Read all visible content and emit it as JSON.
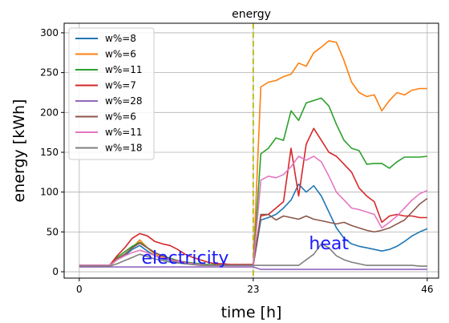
{
  "chart_data": {
    "type": "line",
    "title": "energy",
    "xlabel": "time [h]",
    "ylabel": "energy [kWh]",
    "xlim": [
      -2,
      47.5
    ],
    "ylim": [
      -8,
      312
    ],
    "xticks": [
      0,
      23,
      46
    ],
    "yticks": [
      0,
      50,
      100,
      150,
      200,
      250,
      300
    ],
    "grid": true,
    "legend_position": "upper-left",
    "vline": {
      "x": 23,
      "color": "#bcbd22",
      "style": "dashed"
    },
    "annotations": [
      {
        "text": "electricity",
        "x": 14,
        "y": 10
      },
      {
        "text": "heat",
        "x": 33,
        "y": 28
      }
    ],
    "series": [
      {
        "name": "w%=8",
        "color": "#1f77b4",
        "x": [
          0,
          1,
          2,
          3,
          4,
          5,
          6,
          7,
          8,
          9,
          10,
          11,
          12,
          13,
          14,
          15,
          16,
          17,
          18,
          19,
          20,
          21,
          22,
          23,
          24,
          25,
          26,
          27,
          28,
          29,
          30,
          31,
          32,
          33,
          34,
          35,
          36,
          37,
          38,
          39,
          40,
          41,
          42,
          43,
          44,
          45,
          46
        ],
        "values": [
          8,
          8,
          8,
          8,
          8,
          15,
          20,
          28,
          33,
          26,
          20,
          16,
          14,
          12,
          10,
          10,
          9,
          8,
          8,
          8,
          8,
          8,
          8,
          8,
          65,
          68,
          72,
          80,
          90,
          110,
          100,
          108,
          95,
          75,
          55,
          42,
          35,
          32,
          30,
          28,
          26,
          28,
          32,
          38,
          45,
          50,
          54
        ]
      },
      {
        "name": "w%=6",
        "color": "#ff7f0e",
        "x": [
          0,
          1,
          2,
          3,
          4,
          5,
          6,
          7,
          8,
          9,
          10,
          11,
          12,
          13,
          14,
          15,
          16,
          17,
          18,
          19,
          20,
          21,
          22,
          23,
          24,
          25,
          26,
          27,
          28,
          29,
          30,
          31,
          32,
          33,
          34,
          35,
          36,
          37,
          38,
          39,
          40,
          41,
          42,
          43,
          44,
          45,
          46
        ],
        "values": [
          7,
          7,
          7,
          7,
          7,
          15,
          22,
          30,
          40,
          30,
          22,
          18,
          15,
          13,
          11,
          10,
          9,
          8,
          8,
          8,
          8,
          8,
          8,
          8,
          232,
          238,
          240,
          245,
          248,
          262,
          258,
          275,
          282,
          290,
          288,
          265,
          238,
          225,
          220,
          222,
          202,
          215,
          225,
          222,
          228,
          230,
          230
        ]
      },
      {
        "name": "w%=11",
        "color": "#2ca02c",
        "x": [
          0,
          1,
          2,
          3,
          4,
          5,
          6,
          7,
          8,
          9,
          10,
          11,
          12,
          13,
          14,
          15,
          16,
          17,
          18,
          19,
          20,
          21,
          22,
          23,
          24,
          25,
          26,
          27,
          28,
          29,
          30,
          31,
          32,
          33,
          34,
          35,
          36,
          37,
          38,
          39,
          40,
          41,
          42,
          43,
          44,
          45,
          46
        ],
        "values": [
          8,
          8,
          8,
          8,
          8,
          18,
          25,
          32,
          37,
          30,
          24,
          20,
          17,
          14,
          12,
          11,
          10,
          9,
          9,
          9,
          9,
          9,
          9,
          9,
          148,
          155,
          168,
          165,
          202,
          190,
          212,
          215,
          218,
          208,
          185,
          165,
          155,
          152,
          135,
          136,
          136,
          130,
          138,
          144,
          144,
          144,
          145
        ]
      },
      {
        "name": "w%=7",
        "color": "#d62728",
        "x": [
          0,
          1,
          2,
          3,
          4,
          5,
          6,
          7,
          8,
          9,
          10,
          11,
          12,
          13,
          14,
          15,
          16,
          17,
          18,
          19,
          20,
          21,
          22,
          23,
          24,
          25,
          26,
          27,
          28,
          29,
          30,
          31,
          32,
          33,
          34,
          35,
          36,
          37,
          38,
          39,
          40,
          41,
          42,
          43,
          44,
          45,
          46
        ],
        "values": [
          8,
          8,
          8,
          8,
          8,
          20,
          30,
          42,
          48,
          45,
          38,
          35,
          33,
          28,
          22,
          18,
          15,
          12,
          10,
          10,
          9,
          9,
          9,
          9,
          70,
          72,
          80,
          88,
          155,
          95,
          160,
          180,
          165,
          150,
          145,
          135,
          125,
          105,
          95,
          88,
          62,
          70,
          72,
          70,
          70,
          68,
          68
        ]
      },
      {
        "name": "w%=28",
        "color": "#9467bd",
        "x": [
          0,
          1,
          2,
          3,
          4,
          5,
          6,
          7,
          8,
          9,
          10,
          11,
          12,
          13,
          14,
          15,
          16,
          17,
          18,
          19,
          20,
          21,
          22,
          23,
          24,
          25,
          26,
          27,
          28,
          29,
          30,
          31,
          32,
          33,
          34,
          35,
          36,
          37,
          38,
          39,
          40,
          41,
          42,
          43,
          44,
          45,
          46
        ],
        "values": [
          6,
          6,
          6,
          6,
          6,
          6,
          6,
          6,
          6,
          6,
          6,
          6,
          6,
          6,
          6,
          6,
          6,
          6,
          6,
          6,
          6,
          6,
          6,
          6,
          3,
          3,
          3,
          3,
          3,
          3,
          3,
          3,
          3,
          3,
          3,
          3,
          3,
          3,
          3,
          3,
          3,
          3,
          3,
          3,
          3,
          3,
          3
        ]
      },
      {
        "name": "w%=6",
        "color": "#8c564b",
        "x": [
          0,
          1,
          2,
          3,
          4,
          5,
          6,
          7,
          8,
          9,
          10,
          11,
          12,
          13,
          14,
          15,
          16,
          17,
          18,
          19,
          20,
          21,
          22,
          23,
          24,
          25,
          26,
          27,
          28,
          29,
          30,
          31,
          32,
          33,
          34,
          35,
          36,
          37,
          38,
          39,
          40,
          41,
          42,
          43,
          44,
          45,
          46
        ],
        "values": [
          8,
          8,
          8,
          8,
          8,
          16,
          22,
          30,
          36,
          30,
          24,
          20,
          16,
          14,
          12,
          10,
          9,
          8,
          8,
          8,
          8,
          8,
          8,
          8,
          72,
          72,
          65,
          70,
          68,
          66,
          70,
          66,
          64,
          62,
          60,
          62,
          58,
          55,
          52,
          50,
          52,
          55,
          60,
          65,
          75,
          85,
          92
        ]
      },
      {
        "name": "w%=11",
        "color": "#e377c2",
        "x": [
          0,
          1,
          2,
          3,
          4,
          5,
          6,
          7,
          8,
          9,
          10,
          11,
          12,
          13,
          14,
          15,
          16,
          17,
          18,
          19,
          20,
          21,
          22,
          23,
          24,
          25,
          26,
          27,
          28,
          29,
          30,
          31,
          32,
          33,
          34,
          35,
          36,
          37,
          38,
          39,
          40,
          41,
          42,
          43,
          44,
          45,
          46
        ],
        "values": [
          8,
          8,
          8,
          8,
          8,
          15,
          20,
          24,
          27,
          24,
          20,
          17,
          15,
          13,
          11,
          10,
          9,
          8,
          8,
          8,
          8,
          8,
          8,
          8,
          115,
          120,
          118,
          122,
          132,
          145,
          140,
          145,
          138,
          120,
          100,
          90,
          80,
          78,
          75,
          72,
          55,
          62,
          70,
          80,
          90,
          98,
          102
        ]
      },
      {
        "name": "w%=18",
        "color": "#7f7f7f",
        "x": [
          0,
          1,
          2,
          3,
          4,
          5,
          6,
          7,
          8,
          9,
          10,
          11,
          12,
          13,
          14,
          15,
          16,
          17,
          18,
          19,
          20,
          21,
          22,
          23,
          24,
          25,
          26,
          27,
          28,
          29,
          30,
          31,
          32,
          33,
          34,
          35,
          36,
          37,
          38,
          39,
          40,
          41,
          42,
          43,
          44,
          45,
          46
        ],
        "values": [
          7,
          7,
          7,
          7,
          7,
          10,
          14,
          18,
          22,
          19,
          16,
          14,
          12,
          11,
          10,
          9,
          8,
          8,
          8,
          8,
          8,
          8,
          8,
          8,
          8,
          8,
          8,
          8,
          8,
          8,
          15,
          22,
          35,
          30,
          20,
          15,
          12,
          10,
          8,
          8,
          8,
          8,
          8,
          8,
          8,
          7,
          7
        ]
      }
    ]
  }
}
